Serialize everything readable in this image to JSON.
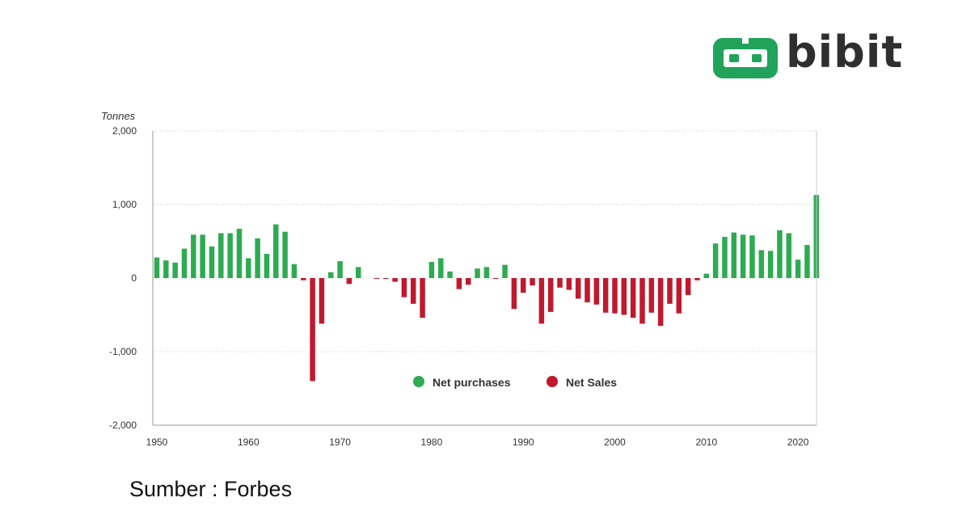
{
  "brand": {
    "name": "bibit",
    "logo_color": "#21a35b"
  },
  "source_text": "Sumber : Forbes",
  "chart_data": {
    "type": "bar",
    "ylabel": "Tonnes",
    "ylim": [
      -2000,
      2000
    ],
    "yticks": [
      2000,
      1000,
      0,
      -1000,
      -2000
    ],
    "ytick_labels": [
      "2,000",
      "1,000",
      "0",
      "-1,000",
      "-2,000"
    ],
    "xticks": [
      1950,
      1960,
      1970,
      1980,
      1990,
      2000,
      2010,
      2020
    ],
    "xtick_labels": [
      "1950",
      "1960",
      "1970",
      "1980",
      "1990",
      "2000",
      "2010",
      "2020"
    ],
    "grid": true,
    "legend_position": "lower-center",
    "colors": {
      "positive": "#2eab52",
      "negative": "#c0192e",
      "grid": "#cccccc",
      "axis": "#999999"
    },
    "series": [
      {
        "name": "Net purchases",
        "color": "#2eab52"
      },
      {
        "name": "Net Sales",
        "color": "#c0192e"
      }
    ],
    "years": [
      1950,
      1951,
      1952,
      1953,
      1954,
      1955,
      1956,
      1957,
      1958,
      1959,
      1960,
      1961,
      1962,
      1963,
      1964,
      1965,
      1966,
      1967,
      1968,
      1969,
      1970,
      1971,
      1972,
      1973,
      1974,
      1975,
      1976,
      1977,
      1978,
      1979,
      1980,
      1981,
      1982,
      1983,
      1984,
      1985,
      1986,
      1987,
      1988,
      1989,
      1990,
      1991,
      1992,
      1993,
      1994,
      1995,
      1996,
      1997,
      1998,
      1999,
      2000,
      2001,
      2002,
      2003,
      2004,
      2005,
      2006,
      2007,
      2008,
      2009,
      2010,
      2011,
      2012,
      2013,
      2014,
      2015,
      2016,
      2017,
      2018,
      2019,
      2020,
      2021,
      2022
    ],
    "values": [
      280,
      240,
      210,
      400,
      590,
      590,
      430,
      610,
      610,
      670,
      270,
      540,
      330,
      730,
      630,
      190,
      -30,
      -1400,
      -620,
      80,
      230,
      -80,
      150,
      0,
      -10,
      -10,
      -50,
      -260,
      -350,
      -540,
      220,
      270,
      90,
      -150,
      -90,
      130,
      150,
      -10,
      180,
      -420,
      -200,
      -100,
      -620,
      -460,
      -130,
      -160,
      -280,
      -330,
      -360,
      -470,
      -480,
      -500,
      -540,
      -620,
      -470,
      -650,
      -350,
      -480,
      -230,
      -30,
      60,
      470,
      560,
      620,
      590,
      580,
      380,
      370,
      650,
      610,
      250,
      450,
      1130
    ]
  }
}
